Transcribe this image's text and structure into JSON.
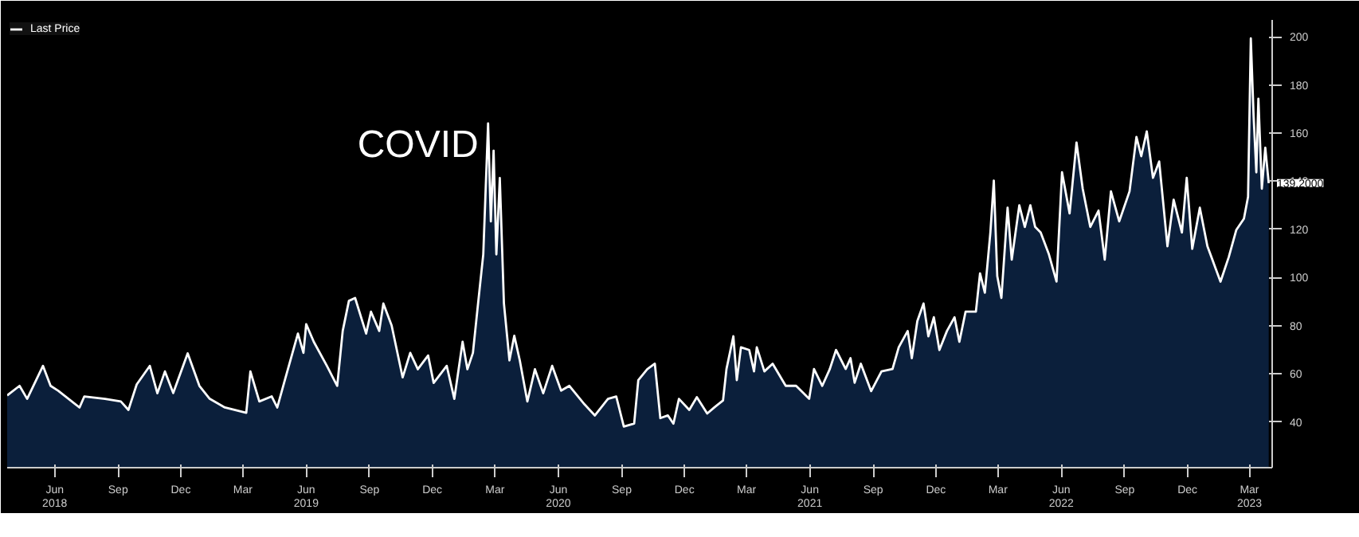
{
  "chart_data": {
    "type": "area",
    "legend": "top left",
    "grid": false,
    "xlim": [
      "2018-03-24",
      "2023-04-03"
    ],
    "ylim": [
      21,
      207
    ],
    "yticks": [
      40,
      60,
      80,
      100,
      120,
      140,
      160,
      180,
      200
    ],
    "xticks": [
      {
        "value": "2018-06-01",
        "label": "Jun\n2018"
      },
      {
        "value": "2018-09-01",
        "label": "Sep"
      },
      {
        "value": "2018-12-01",
        "label": "Dec"
      },
      {
        "value": "2019-03-01",
        "label": "Mar"
      },
      {
        "value": "2019-06-01",
        "label": "Jun\n2019"
      },
      {
        "value": "2019-09-01",
        "label": "Sep"
      },
      {
        "value": "2019-12-01",
        "label": "Dec"
      },
      {
        "value": "2020-03-01",
        "label": "Mar"
      },
      {
        "value": "2020-06-01",
        "label": "Jun\n2020"
      },
      {
        "value": "2020-09-01",
        "label": "Sep"
      },
      {
        "value": "2020-12-01",
        "label": "Dec"
      },
      {
        "value": "2021-03-01",
        "label": "Mar"
      },
      {
        "value": "2021-06-01",
        "label": "Jun\n2021"
      },
      {
        "value": "2021-09-01",
        "label": "Sep"
      },
      {
        "value": "2021-12-01",
        "label": "Dec"
      },
      {
        "value": "2022-03-01",
        "label": "Mar"
      },
      {
        "value": "2022-06-01",
        "label": "Jun\n2022"
      },
      {
        "value": "2022-09-01",
        "label": "Sep"
      },
      {
        "value": "2022-12-01",
        "label": "Dec"
      },
      {
        "value": "2023-03-01",
        "label": "Mar\n2023"
      }
    ],
    "x": [
      "2018-03-24",
      "2018-04-11",
      "2018-04-22",
      "2018-05-15",
      "2018-05-26",
      "2018-06-06",
      "2018-07-07",
      "2018-07-14",
      "2018-08-13",
      "2018-09-05",
      "2018-09-16",
      "2018-09-28",
      "2018-10-17",
      "2018-10-28",
      "2018-11-08",
      "2018-11-20",
      "2018-12-11",
      "2018-12-28",
      "2019-01-12",
      "2019-02-03",
      "2019-03-06",
      "2019-03-12",
      "2019-03-25",
      "2019-04-12",
      "2019-04-20",
      "2019-05-01",
      "2019-05-20",
      "2019-05-28",
      "2019-06-01",
      "2019-06-12",
      "2019-07-01",
      "2019-07-16",
      "2019-07-24",
      "2019-08-02",
      "2019-08-11",
      "2019-08-27",
      "2019-09-03",
      "2019-09-15",
      "2019-09-21",
      "2019-10-03",
      "2019-10-19",
      "2019-10-30",
      "2019-11-10",
      "2019-11-25",
      "2019-12-03",
      "2019-12-22",
      "2020-01-02",
      "2020-01-14",
      "2020-01-21",
      "2020-01-29",
      "2020-02-05",
      "2020-02-13",
      "2020-02-20",
      "2020-02-24",
      "2020-02-28",
      "2020-03-03",
      "2020-03-08",
      "2020-03-14",
      "2020-03-22",
      "2020-03-29",
      "2020-04-06",
      "2020-04-17",
      "2020-04-28",
      "2020-05-10",
      "2020-05-23",
      "2020-06-05",
      "2020-06-17",
      "2020-07-09",
      "2020-07-24",
      "2020-08-12",
      "2020-08-24",
      "2020-09-04",
      "2020-09-19",
      "2020-09-25",
      "2020-10-08",
      "2020-10-19",
      "2020-10-27",
      "2020-11-07",
      "2020-11-15",
      "2020-11-23",
      "2020-12-08",
      "2020-12-19",
      "2021-01-03",
      "2021-01-14",
      "2021-01-26",
      "2021-01-31",
      "2021-02-10",
      "2021-02-15",
      "2021-02-21",
      "2021-03-05",
      "2021-03-12",
      "2021-03-16",
      "2021-03-27",
      "2021-04-08",
      "2021-04-27",
      "2021-05-12",
      "2021-05-31",
      "2021-06-07",
      "2021-06-19",
      "2021-06-30",
      "2021-07-09",
      "2021-07-23",
      "2021-07-30",
      "2021-08-05",
      "2021-08-14",
      "2021-08-29",
      "2021-09-13",
      "2021-09-29",
      "2021-10-08",
      "2021-10-21",
      "2021-10-27",
      "2021-11-04",
      "2021-11-13",
      "2021-11-20",
      "2021-11-28",
      "2021-12-06",
      "2021-12-17",
      "2021-12-28",
      "2022-01-04",
      "2022-01-13",
      "2022-01-28",
      "2022-02-03",
      "2022-02-10",
      "2022-02-18",
      "2022-02-23",
      "2022-02-28",
      "2022-03-06",
      "2022-03-15",
      "2022-03-21",
      "2022-04-01",
      "2022-04-09",
      "2022-04-17",
      "2022-04-24",
      "2022-05-02",
      "2022-05-14",
      "2022-05-25",
      "2022-06-02",
      "2022-06-13",
      "2022-06-23",
      "2022-07-02",
      "2022-07-13",
      "2022-07-25",
      "2022-08-03",
      "2022-08-12",
      "2022-08-24",
      "2022-09-08",
      "2022-09-18",
      "2022-09-25",
      "2022-10-03",
      "2022-10-12",
      "2022-10-21",
      "2022-11-02",
      "2022-11-11",
      "2022-11-23",
      "2022-11-30",
      "2022-12-08",
      "2022-12-19",
      "2022-12-30",
      "2023-01-18",
      "2023-01-30",
      "2023-02-10",
      "2023-02-21",
      "2023-02-27",
      "2023-03-03",
      "2023-03-07",
      "2023-03-11",
      "2023-03-14",
      "2023-03-19",
      "2023-03-24",
      "2023-03-29"
    ],
    "series": [
      {
        "name": "Last Price",
        "color": "#ffffff",
        "values": [
          51,
          55,
          49.6,
          63.3,
          55,
          53,
          46,
          50.6,
          49.6,
          48.5,
          45,
          55.6,
          63.3,
          51.9,
          61,
          52,
          68.5,
          55,
          49.6,
          46,
          43.8,
          61,
          48.5,
          50.6,
          46,
          57.4,
          76.7,
          68.7,
          80.6,
          73.3,
          63.3,
          55,
          77.8,
          90.3,
          91.5,
          76.7,
          85.8,
          77.8,
          89.2,
          80.1,
          58.5,
          68.7,
          61.9,
          67.6,
          56.2,
          63.3,
          49.6,
          73.3,
          61.9,
          68.7,
          88,
          109.6,
          164,
          123.3,
          152.7,
          109.6,
          141.3,
          89.2,
          65.6,
          75.8,
          65.6,
          48.5,
          61.9,
          51.9,
          63.3,
          53,
          55,
          47.3,
          42.7,
          49.6,
          50.6,
          38.1,
          39.3,
          57.4,
          61.9,
          64.2,
          41.6,
          42.7,
          39.3,
          49.6,
          45,
          50.3,
          43.5,
          46.2,
          48.9,
          62,
          75.6,
          57.4,
          71,
          69.9,
          61,
          71,
          61,
          64.2,
          55,
          55,
          49.6,
          62,
          55,
          62,
          69.9,
          62,
          66.5,
          56.3,
          64.2,
          52.8,
          61,
          62,
          71,
          77.8,
          66.5,
          81.9,
          89.2,
          75.6,
          83.5,
          69.9,
          77.8,
          83.5,
          73.3,
          85.8,
          85.8,
          101.7,
          93.7,
          118.7,
          140.3,
          100.6,
          91.5,
          129,
          107.4,
          130,
          121,
          130,
          121,
          118.7,
          109.6,
          98.3,
          143.7,
          126.6,
          156.1,
          136.9,
          121,
          127.8,
          107.4,
          135.8,
          123.3,
          135.8,
          158.4,
          150.4,
          160.7,
          141.4,
          148.2,
          113,
          132.3,
          118.7,
          141.4,
          111.9,
          129,
          113,
          98.3,
          108.5,
          119.8,
          124.4,
          133.5,
          199.3,
          167.5,
          143.7,
          174.3,
          136.9,
          153.9,
          139.2
        ]
      }
    ],
    "annotations": [
      {
        "text": "COVID",
        "x": "2020-02-20",
        "y": 164
      },
      {
        "text": "139.2000",
        "x": "2023-03-29",
        "y": 139.2
      }
    ]
  }
}
